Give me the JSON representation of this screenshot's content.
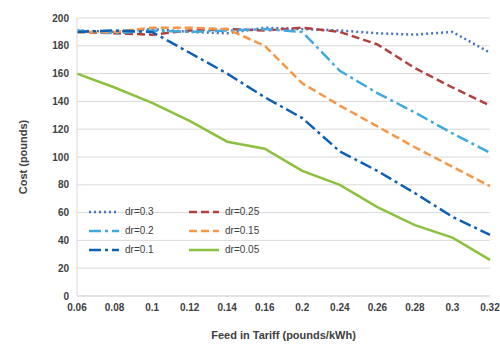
{
  "chart_data": {
    "type": "line",
    "x_label": "Feed in Tariff (pounds/kWh)",
    "y_label": "Cost (pounds)",
    "categories": [
      "0.06",
      "0.08",
      "0.1",
      "0.12",
      "0.14",
      "0.16",
      "0.2",
      "0.24",
      "0.26",
      "0.28",
      "0.3",
      "0.32"
    ],
    "series": [
      {
        "name": "dr=0.3",
        "color": "#4472c4",
        "line_style": "dotted",
        "values": [
          191,
          190,
          192,
          190,
          189,
          193,
          192,
          191,
          189,
          188,
          190,
          175
        ]
      },
      {
        "name": "dr=0.25",
        "color": "#b0413e",
        "line_style": "dashed",
        "values": [
          190,
          189,
          188,
          191,
          192,
          191,
          193,
          190,
          181,
          164,
          150,
          137
        ]
      },
      {
        "name": "dr=0.2",
        "color": "#3fa9e0",
        "line_style": "dash_dot",
        "values": [
          191,
          189,
          191,
          190,
          191,
          192,
          190,
          162,
          146,
          132,
          117,
          103
        ]
      },
      {
        "name": "dr=0.15",
        "color": "#f79646",
        "line_style": "dashed",
        "values": [
          190,
          190,
          193,
          193,
          192,
          180,
          153,
          137,
          122,
          107,
          93,
          79
        ]
      },
      {
        "name": "dr=0.1",
        "color": "#0f5fb3",
        "line_style": "dash_dot",
        "values": [
          190,
          191,
          190,
          175,
          160,
          143,
          128,
          104,
          90,
          74,
          57,
          44
        ]
      },
      {
        "name": "dr=0.05",
        "color": "#8cc040",
        "line_style": "solid",
        "values": [
          160,
          150,
          139,
          126,
          111,
          106,
          90,
          80,
          64,
          51,
          42,
          26
        ]
      }
    ],
    "ylim": [
      0,
      200
    ],
    "yticks": [
      0,
      20,
      40,
      60,
      80,
      100,
      120,
      140,
      160,
      180,
      200
    ],
    "grid": true,
    "legend": "lower left"
  }
}
